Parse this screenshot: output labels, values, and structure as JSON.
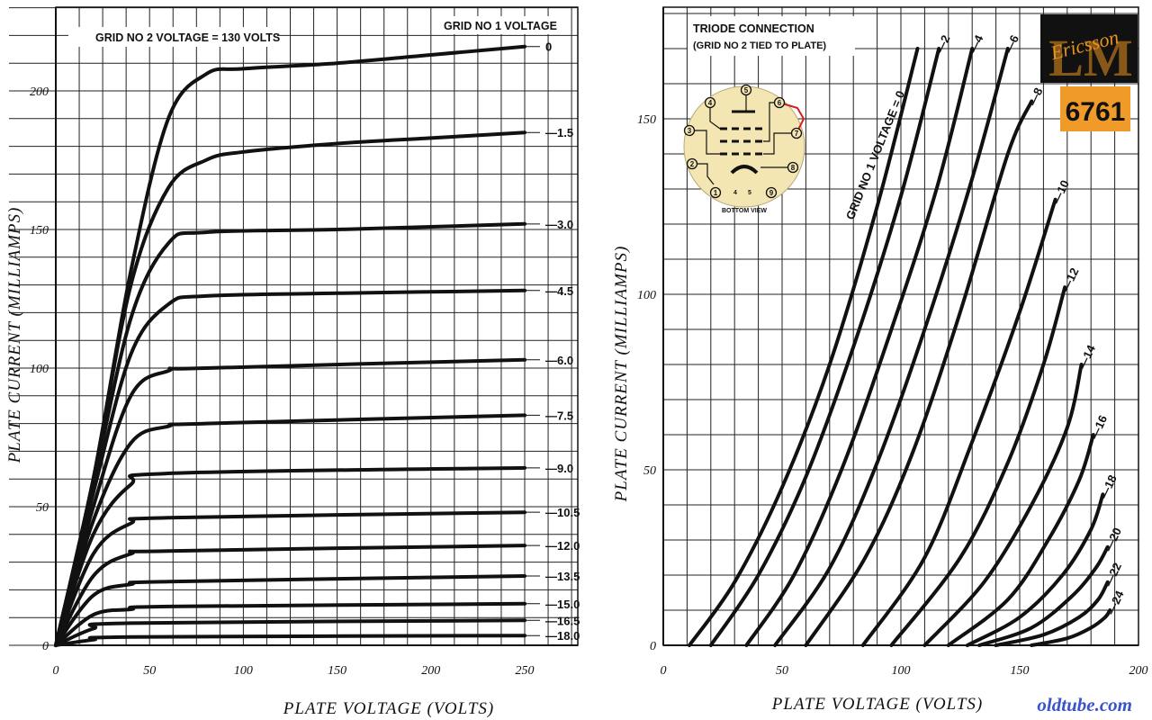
{
  "chart_data": [
    {
      "type": "line",
      "title": "",
      "annotations": [
        "GRID NO 2 VOLTAGE = 130 VOLTS"
      ],
      "legend_title": "GRID NO 1 VOLTAGE",
      "xlabel": "PLATE VOLTAGE (VOLTS)",
      "ylabel": "PLATE CURRENT (MILLIAMPS)",
      "xlim": [
        0,
        250
      ],
      "ylim": [
        0,
        215
      ],
      "xticks": [
        "0",
        "50",
        "100",
        "150",
        "200",
        "250"
      ],
      "yticks": [
        "0",
        "50",
        "100",
        "150",
        "200"
      ],
      "grid": true,
      "series": [
        {
          "name": "0",
          "label": "0",
          "knee": 90,
          "values": [
            [
              0,
              0
            ],
            [
              20,
              60
            ],
            [
              40,
              135
            ],
            [
              60,
              190
            ],
            [
              80,
              206
            ],
            [
              100,
              208
            ],
            [
              150,
              210
            ],
            [
              200,
              213
            ],
            [
              250,
              216
            ]
          ]
        },
        {
          "name": "-1.5",
          "label": "—1.5",
          "knee": 75,
          "values": [
            [
              0,
              0
            ],
            [
              20,
              60
            ],
            [
              40,
              130
            ],
            [
              60,
              165
            ],
            [
              80,
              175
            ],
            [
              100,
              178
            ],
            [
              150,
              181
            ],
            [
              200,
              183
            ],
            [
              250,
              185
            ]
          ]
        },
        {
          "name": "-3.0",
          "label": "—3.0",
          "knee": 65,
          "values": [
            [
              0,
              0
            ],
            [
              20,
              58
            ],
            [
              40,
              118
            ],
            [
              60,
              145
            ],
            [
              80,
              149
            ],
            [
              150,
              150
            ],
            [
              250,
              152
            ]
          ]
        },
        {
          "name": "-4.5",
          "label": "—4.5",
          "knee": 55,
          "values": [
            [
              0,
              0
            ],
            [
              20,
              55
            ],
            [
              40,
              105
            ],
            [
              60,
              123
            ],
            [
              80,
              126
            ],
            [
              150,
              127
            ],
            [
              250,
              128
            ]
          ]
        },
        {
          "name": "-6.0",
          "label": "—6.0",
          "knee": 48,
          "values": [
            [
              0,
              0
            ],
            [
              20,
              50
            ],
            [
              40,
              90
            ],
            [
              60,
              99
            ],
            [
              80,
              100
            ],
            [
              250,
              103
            ]
          ]
        },
        {
          "name": "-7.5",
          "label": "—7.5",
          "knee": 44,
          "values": [
            [
              0,
              0
            ],
            [
              20,
              45
            ],
            [
              40,
              73
            ],
            [
              60,
              79
            ],
            [
              80,
              80
            ],
            [
              250,
              83
            ]
          ]
        },
        {
          "name": "-9.0",
          "label": "—9.0",
          "knee": 40,
          "values": [
            [
              0,
              0
            ],
            [
              20,
              40
            ],
            [
              40,
              58
            ],
            [
              60,
              62
            ],
            [
              250,
              64
            ]
          ]
        },
        {
          "name": "-10.5",
          "label": "—10.5",
          "knee": 36,
          "values": [
            [
              0,
              0
            ],
            [
              20,
              33
            ],
            [
              40,
              44
            ],
            [
              60,
              46
            ],
            [
              250,
              48
            ]
          ]
        },
        {
          "name": "-12.0",
          "label": "—12.0",
          "knee": 32,
          "values": [
            [
              0,
              0
            ],
            [
              20,
              25
            ],
            [
              40,
              33
            ],
            [
              60,
              34
            ],
            [
              250,
              36
            ]
          ]
        },
        {
          "name": "-13.5",
          "label": "—13.5",
          "knee": 30,
          "values": [
            [
              0,
              0
            ],
            [
              20,
              18
            ],
            [
              40,
              22
            ],
            [
              60,
              23
            ],
            [
              250,
              25
            ]
          ]
        },
        {
          "name": "-15.0",
          "label": "—15.0",
          "knee": 28,
          "values": [
            [
              0,
              0
            ],
            [
              20,
              11
            ],
            [
              40,
              13
            ],
            [
              60,
              14
            ],
            [
              250,
              15
            ]
          ]
        },
        {
          "name": "-16.5",
          "label": "—16.5",
          "knee": 26,
          "values": [
            [
              0,
              0
            ],
            [
              20,
              6
            ],
            [
              40,
              8
            ],
            [
              250,
              9
            ]
          ]
        },
        {
          "name": "-18.0",
          "label": "—18.0",
          "knee": 24,
          "values": [
            [
              0,
              0
            ],
            [
              20,
              2
            ],
            [
              40,
              3
            ],
            [
              250,
              3.5
            ]
          ]
        }
      ]
    },
    {
      "type": "line",
      "title": "",
      "annotations": [
        "TRIODE CONNECTION",
        "(GRID NO 2 TIED TO PLATE)"
      ],
      "legend_title": "GRID NO 1 VOLTAGE = 0",
      "xlabel": "PLATE VOLTAGE (VOLTS)",
      "ylabel": "PLATE CURRENT (MILLIAMPS)",
      "xlim": [
        0,
        200
      ],
      "ylim": [
        0,
        175
      ],
      "xticks": [
        "0",
        "50",
        "100",
        "150",
        "200"
      ],
      "yticks": [
        "0",
        "50",
        "100",
        "150"
      ],
      "grid": true,
      "series": [
        {
          "name": "0",
          "label": "",
          "values": [
            [
              11,
              0
            ],
            [
              30,
              18
            ],
            [
              50,
              45
            ],
            [
              70,
              80
            ],
            [
              90,
              125
            ],
            [
              107,
              170
            ]
          ]
        },
        {
          "name": "-2",
          "label": "—2",
          "values": [
            [
              20,
              0
            ],
            [
              40,
              20
            ],
            [
              60,
              48
            ],
            [
              80,
              85
            ],
            [
              100,
              128
            ],
            [
              116,
              170
            ]
          ]
        },
        {
          "name": "-4",
          "label": "—4",
          "values": [
            [
              35,
              0
            ],
            [
              55,
              20
            ],
            [
              75,
              50
            ],
            [
              95,
              88
            ],
            [
              115,
              130
            ],
            [
              130,
              170
            ]
          ]
        },
        {
          "name": "-6",
          "label": "—6",
          "values": [
            [
              47,
              0
            ],
            [
              70,
              22
            ],
            [
              90,
              52
            ],
            [
              110,
              90
            ],
            [
              130,
              133
            ],
            [
              145,
              170
            ]
          ]
        },
        {
          "name": "-8",
          "label": "—8",
          "values": [
            [
              60,
              0
            ],
            [
              85,
              25
            ],
            [
              105,
              55
            ],
            [
              125,
              95
            ],
            [
              145,
              140
            ],
            [
              155,
              155
            ]
          ]
        },
        {
          "name": "-10",
          "label": "—10",
          "values": [
            [
              84,
              0
            ],
            [
              110,
              25
            ],
            [
              130,
              58
            ],
            [
              150,
              95
            ],
            [
              165,
              127
            ]
          ]
        },
        {
          "name": "-12",
          "label": "—12",
          "values": [
            [
              96,
              0
            ],
            [
              125,
              25
            ],
            [
              145,
              52
            ],
            [
              160,
              80
            ],
            [
              169,
              102
            ]
          ]
        },
        {
          "name": "-14",
          "label": "—14",
          "values": [
            [
              110,
              0
            ],
            [
              135,
              18
            ],
            [
              155,
              40
            ],
            [
              170,
              62
            ],
            [
              176,
              80
            ]
          ]
        },
        {
          "name": "-16",
          "label": "—16",
          "values": [
            [
              120,
              0
            ],
            [
              145,
              13
            ],
            [
              162,
              30
            ],
            [
              175,
              47
            ],
            [
              181,
              60
            ]
          ]
        },
        {
          "name": "-18",
          "label": "—18",
          "values": [
            [
              128,
              0
            ],
            [
              150,
              8
            ],
            [
              168,
              20
            ],
            [
              180,
              33
            ],
            [
              185,
              43
            ]
          ]
        },
        {
          "name": "-20",
          "label": "—20",
          "values": [
            [
              133,
              0
            ],
            [
              155,
              5
            ],
            [
              172,
              14
            ],
            [
              182,
              22
            ],
            [
              187,
              28
            ]
          ]
        },
        {
          "name": "-22",
          "label": "—22",
          "values": [
            [
              140,
              0
            ],
            [
              160,
              3
            ],
            [
              175,
              8
            ],
            [
              183,
              13
            ],
            [
              187,
              18
            ]
          ]
        },
        {
          "name": "-24",
          "label": "—24",
          "values": [
            [
              155,
              0
            ],
            [
              170,
              2
            ],
            [
              180,
              5
            ],
            [
              186,
              8
            ],
            [
              188,
              10
            ]
          ]
        }
      ]
    }
  ],
  "base_diagram": {
    "caption": "BOTTOM VIEW",
    "pins": [
      "1",
      "2",
      "3",
      "4",
      "5",
      "6",
      "7",
      "8",
      "9"
    ],
    "inner_pins": [
      "4",
      "5"
    ],
    "jumper_color": "#d42020"
  },
  "logo": {
    "brand": "Ericsson",
    "mark": "LM",
    "tube_type": "6761",
    "colors": {
      "badge": "#111111",
      "accent": "#e8931e",
      "tube_bg": "#f09a2a"
    }
  },
  "watermark": {
    "text": "oldtube.com",
    "color": "#3b53c8"
  }
}
